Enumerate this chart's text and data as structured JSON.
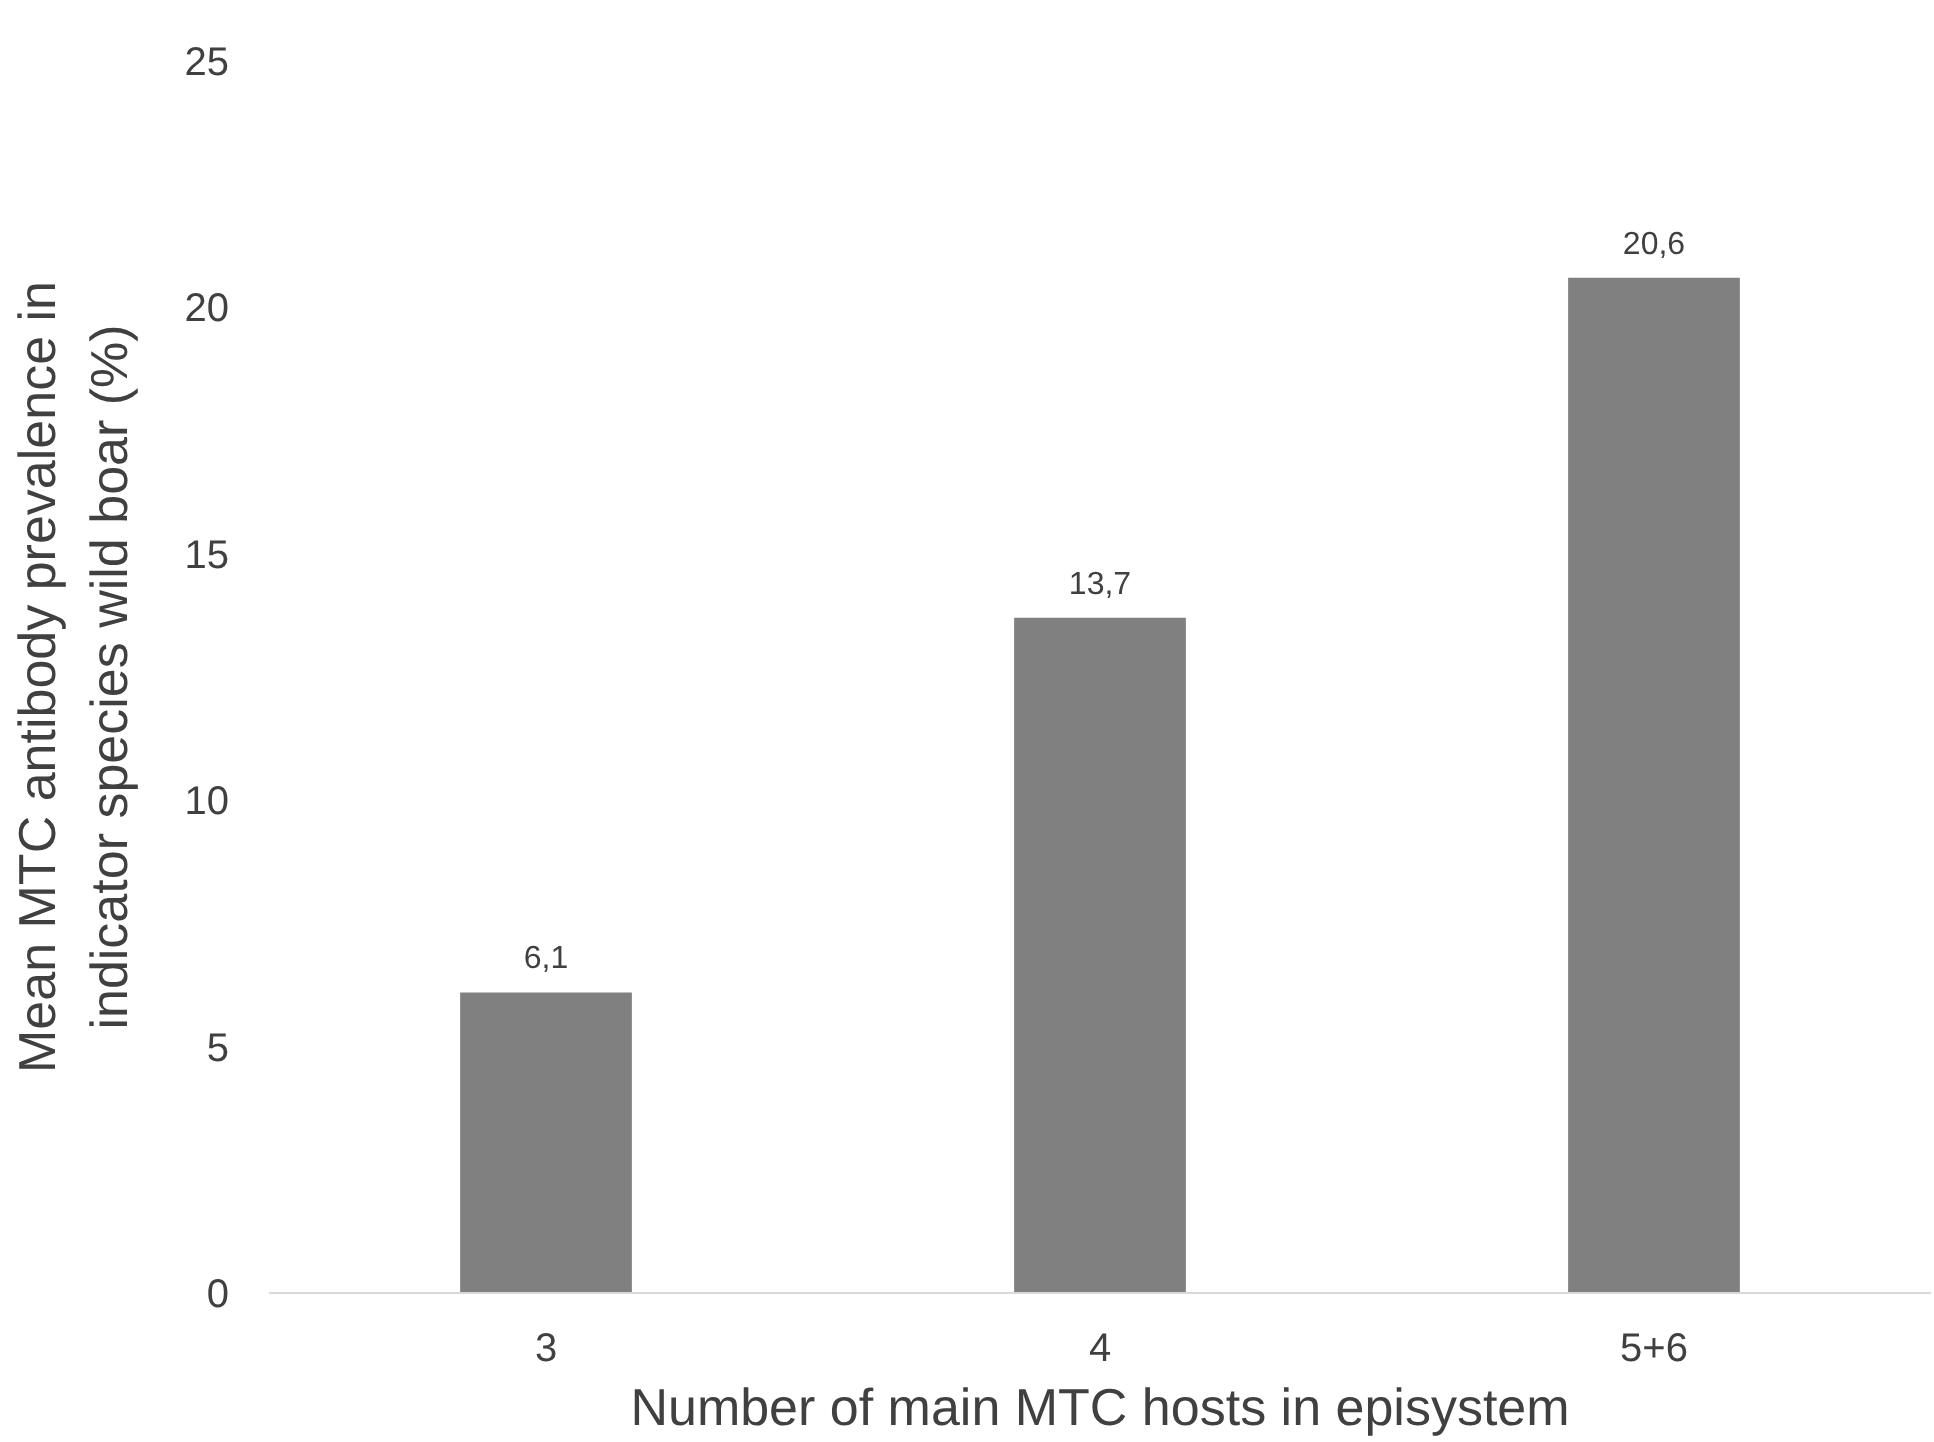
{
  "chart_data": {
    "type": "bar",
    "xlabel": "Number of main MTC hosts in episystem",
    "ylabel": "Mean MTC antibody prevalence in\nindicator species wild boar (%)",
    "categories": [
      "3",
      "4",
      "5+6"
    ],
    "values": [
      6.1,
      13.7,
      20.6
    ],
    "value_labels": [
      "6,1",
      "13,7",
      "20,6"
    ],
    "color": "#808080",
    "ylim": [
      0,
      25
    ],
    "yticks": [
      0,
      5,
      10,
      15,
      20,
      25
    ]
  }
}
